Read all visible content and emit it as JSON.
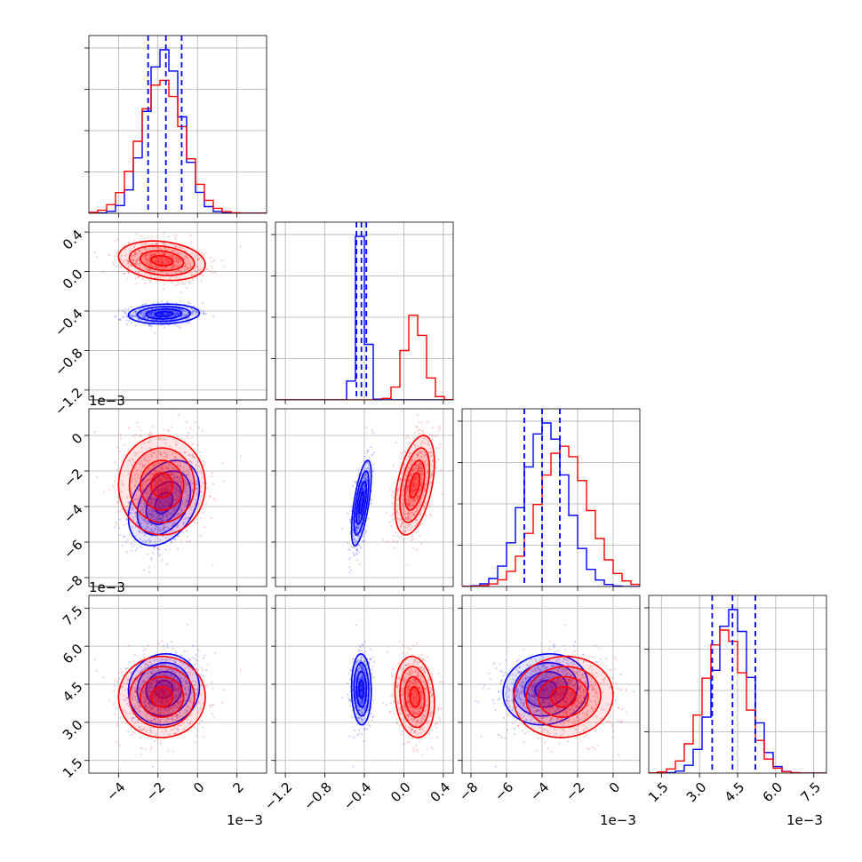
{
  "chart_data": {
    "type": "corner",
    "grid": true,
    "colors": {
      "series_a": "#0000ff",
      "series_b": "#ff0000",
      "grid": "#b0b0b0",
      "axes": "#000000"
    },
    "series": [
      {
        "color": "#0000ff",
        "means": [
          -0.0017,
          -0.43,
          -0.0038,
          0.0043
        ],
        "sd": [
          0.0009,
          0.05,
          0.0012,
          0.0007
        ],
        "corr": {
          "1_0": 0.1,
          "2_0": 0.35,
          "2_1": 0.65,
          "3_0": 0.05,
          "3_1": -0.05,
          "3_2": 0.1
        }
      },
      {
        "color": "#ff0000",
        "means": [
          -0.0018,
          0.11,
          -0.0028,
          0.004
        ],
        "sd": [
          0.0011,
          0.1,
          0.0014,
          0.0008
        ],
        "corr": {
          "1_0": -0.2,
          "2_0": 0.0,
          "2_1": 0.45,
          "3_0": 0.0,
          "3_1": -0.15,
          "3_2": 0.05
        }
      }
    ],
    "quantiles_shown_for": "#0000ff",
    "quantiles": [
      [
        -0.0025,
        -0.0016,
        -0.0008
      ],
      [
        -0.48,
        -0.43,
        -0.38
      ],
      [
        -0.005,
        -0.004,
        -0.003
      ],
      [
        0.0035,
        0.0043,
        0.0052
      ]
    ],
    "axes": [
      {
        "range": [
          -0.0055,
          0.0035
        ],
        "ticks": [
          -0.004,
          -0.002,
          0,
          0.002
        ],
        "tick_labels": [
          "−4",
          "−2",
          "0",
          "2"
        ]
      },
      {
        "range": [
          -1.3,
          0.5
        ],
        "ticks": [
          -1.2,
          -0.8,
          -0.4,
          0.0,
          0.4
        ],
        "tick_labels": [
          "−1.2",
          "−0.8",
          "−0.4",
          "0.0",
          "0.4"
        ]
      },
      {
        "range": [
          -0.0085,
          0.0015
        ],
        "ticks": [
          -0.008,
          -0.006,
          -0.004,
          -0.002,
          0
        ],
        "tick_labels": [
          "−8",
          "−6",
          "−4",
          "−2",
          "0"
        ]
      },
      {
        "range": [
          0.001,
          0.008
        ],
        "ticks": [
          0.0015,
          0.003,
          0.0045,
          0.006,
          0.0075
        ],
        "tick_labels": [
          "1.5",
          "3.0",
          "4.5",
          "6.0",
          "7.5"
        ]
      }
    ],
    "offset_labels": {
      "x0": "1e−3",
      "x2": "1e−3",
      "x3": "1e−3",
      "y2": "1e−3",
      "y3": "1e−3"
    }
  }
}
